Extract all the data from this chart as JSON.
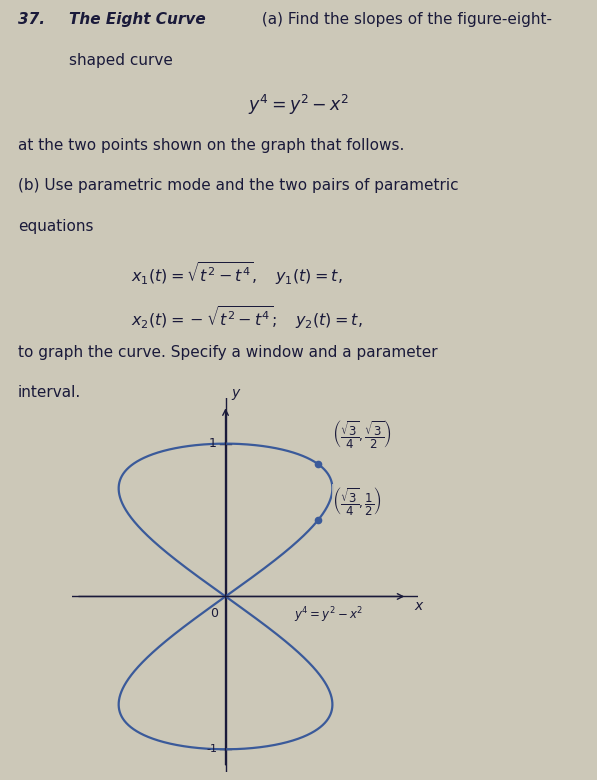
{
  "background_color": "#ccc8b8",
  "text_color": "#1a1a3a",
  "curve_color": "#3a5a9a",
  "point_color": "#3a5a9a",
  "axis_color": "#1a1a3a",
  "point1": [
    0.4330127,
    0.8660254
  ],
  "point2": [
    0.4330127,
    0.5
  ],
  "fig_width": 5.97,
  "fig_height": 7.8,
  "text_fontsize": 11.0,
  "eq_fontsize": 11.5
}
